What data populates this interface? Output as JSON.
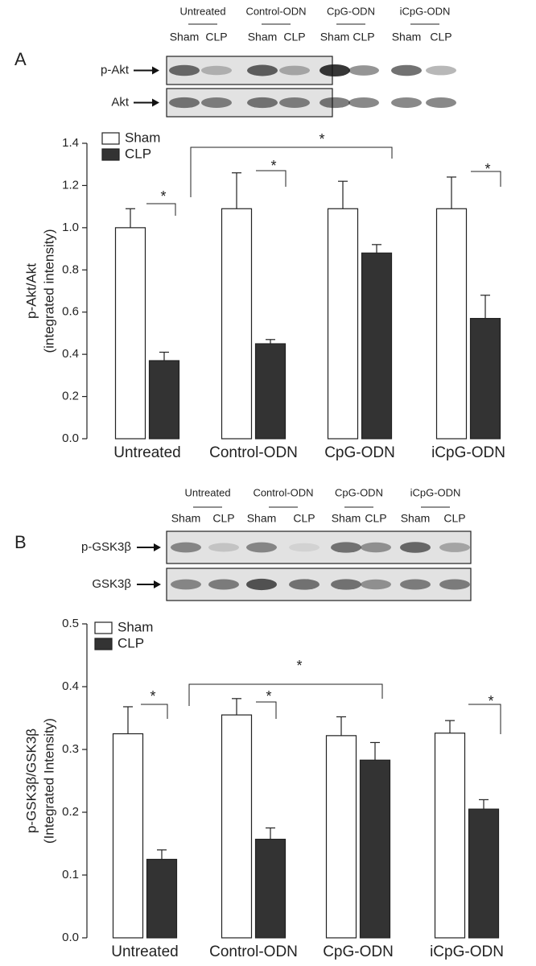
{
  "chart_data": [
    {
      "type": "bar",
      "panel": "A",
      "blot_groups": [
        "Untreated",
        "Control-ODN",
        "CpG-ODN",
        "iCpG-ODN"
      ],
      "blot_lanes": [
        "Sham",
        "CLP",
        "Sham",
        "CLP",
        "Sham",
        "CLP",
        "Sham",
        "CLP"
      ],
      "blot_rows": [
        "p-Akt",
        "Akt"
      ],
      "ylabel": [
        "p-Akt/Akt",
        "(integrated intensity)"
      ],
      "categories": [
        "Untreated",
        "Control-ODN",
        "CpG-ODN",
        "iCpG-ODN"
      ],
      "series": [
        {
          "name": "Sham",
          "color": "#ffffff",
          "values": [
            1.0,
            1.09,
            1.09,
            1.09
          ],
          "errors": [
            0.09,
            0.17,
            0.13,
            0.15
          ]
        },
        {
          "name": "CLP",
          "color": "#333333",
          "values": [
            0.37,
            0.45,
            0.88,
            0.57
          ],
          "errors": [
            0.04,
            0.02,
            0.04,
            0.11
          ]
        }
      ],
      "ylim": [
        0,
        1.4
      ],
      "yticks": [
        {
          "value": 0,
          "label": "0.0"
        },
        0.2,
        0.4,
        0.6,
        0.8,
        {
          "value": 1,
          "label": "1.0"
        },
        1.2,
        1.4
      ],
      "annotations": [
        "*",
        "*",
        "*",
        "*"
      ]
    },
    {
      "type": "bar",
      "panel": "B",
      "blot_groups": [
        "Untreated",
        "Control-ODN",
        "CpG-ODN",
        "iCpG-ODN"
      ],
      "blot_lanes": [
        "Sham",
        "CLP",
        "Sham",
        "CLP",
        "Sham",
        "CLP",
        "Sham",
        "CLP"
      ],
      "blot_rows": [
        "p-GSK3β",
        "GSK3β"
      ],
      "ylabel": [
        "p-GSK3β/GSK3β",
        "(Integrated Intensity)"
      ],
      "categories": [
        "Untreated",
        "Control-ODN",
        "CpG-ODN",
        "iCpG-ODN"
      ],
      "series": [
        {
          "name": "Sham",
          "color": "#ffffff",
          "values": [
            0.325,
            0.355,
            0.322,
            0.326
          ],
          "errors": [
            0.043,
            0.026,
            0.03,
            0.02
          ]
        },
        {
          "name": "CLP",
          "color": "#333333",
          "values": [
            0.125,
            0.157,
            0.283,
            0.205
          ],
          "errors": [
            0.015,
            0.018,
            0.028,
            0.015
          ]
        }
      ],
      "ylim": [
        0,
        0.5
      ],
      "yticks": [
        {
          "value": 0,
          "label": "0.0"
        },
        0.1,
        0.2,
        0.3,
        0.4,
        0.5
      ],
      "annotations": [
        "*",
        "*",
        "*",
        "*"
      ]
    }
  ]
}
